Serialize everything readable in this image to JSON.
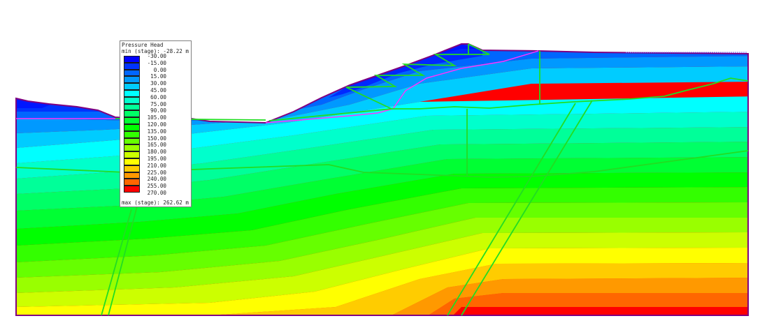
{
  "legend": {
    "title": "Pressure Head",
    "min_label": "min (stage): -28.22 m",
    "max_label": "max (stage): 262.62 m",
    "entries": [
      {
        "value": "-30.00",
        "color": "#0000ff"
      },
      {
        "value": "-15.00",
        "color": "#0033ff"
      },
      {
        "value": "0.00",
        "color": "#0066ff"
      },
      {
        "value": "15.00",
        "color": "#0099ff"
      },
      {
        "value": "30.00",
        "color": "#00ccff"
      },
      {
        "value": "45.00",
        "color": "#00ffff"
      },
      {
        "value": "60.00",
        "color": "#00ffcc"
      },
      {
        "value": "75.00",
        "color": "#00ff99"
      },
      {
        "value": "90.00",
        "color": "#00ff66"
      },
      {
        "value": "105.00",
        "color": "#00ff33"
      },
      {
        "value": "120.00",
        "color": "#00ff00"
      },
      {
        "value": "135.00",
        "color": "#33ff00"
      },
      {
        "value": "150.00",
        "color": "#66ff00"
      },
      {
        "value": "165.00",
        "color": "#99ff00"
      },
      {
        "value": "180.00",
        "color": "#ccff00"
      },
      {
        "value": "195.00",
        "color": "#ffff00"
      },
      {
        "value": "210.00",
        "color": "#ffcc00"
      },
      {
        "value": "225.00",
        "color": "#ff9900"
      },
      {
        "value": "240.00",
        "color": "#ff6600"
      },
      {
        "value": "255.00",
        "color": "#ff0000"
      },
      {
        "value": "270.00",
        "color": ""
      }
    ]
  },
  "chart_data": {
    "type": "heatmap",
    "title": "Pressure Head",
    "quantity": "Pressure Head (m)",
    "contour_levels": [
      -30,
      -15,
      0,
      15,
      30,
      45,
      60,
      75,
      90,
      105,
      120,
      135,
      150,
      165,
      180,
      195,
      210,
      225,
      240,
      255,
      270
    ],
    "min_stage": -28.22,
    "max_stage": 262.62,
    "unit": "m",
    "legend_position": "upper-left",
    "description": "2D slope cross-section contour plot; pressure head increases with depth, lowest (blue) under the embankment crest, highest (red) at the bottom right; green lines mark material boundaries, faults and benches; magenta line marks phreatic/stage boundary."
  },
  "colors": {
    "boundary": "#800080",
    "material_lines": "#22dd22",
    "phreatic": "#ff33ff"
  }
}
